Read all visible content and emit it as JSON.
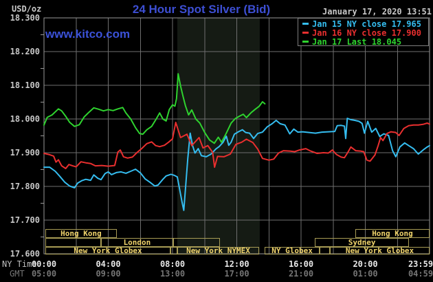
{
  "header": {
    "units_label": "USD/oz",
    "title": "24 Hour Spot Silver (Bid)",
    "timestamp": "January 17, 2020 13:51",
    "watermark": "www.kitco.com"
  },
  "legend": {
    "items": [
      {
        "label": "Jan 15 NY close 17.965",
        "color": "#35bdf0"
      },
      {
        "label": "Jan 16 NY close 17.900",
        "color": "#e92f2f"
      },
      {
        "label": "Jan 17 Last 18.045",
        "color": "#2fd32f"
      }
    ]
  },
  "axes": {
    "y_ticks": [
      "18.300",
      "18.200",
      "18.100",
      "18.000",
      "17.900",
      "17.800",
      "17.700",
      "17.600"
    ],
    "y_values": [
      18.3,
      18.2,
      18.1,
      18.0,
      17.9,
      17.8,
      17.7,
      17.6
    ],
    "tick_hours": [
      0,
      4,
      8,
      12,
      16,
      20,
      24
    ],
    "rows": [
      {
        "label": "NY Time",
        "color": "#bfbfbf",
        "tick_color": "#e8e8e8",
        "ticks": [
          "00:00",
          "04:00",
          "08:00",
          "12:00",
          "16:00",
          "20:00",
          "23:59"
        ]
      },
      {
        "label": "GMT",
        "color": "#757575",
        "tick_color": "#757575",
        "ticks": [
          "05:00",
          "09:00",
          "13:00",
          "17:00",
          "21:00",
          "01:00",
          "04:59"
        ]
      }
    ]
  },
  "sessions": {
    "rows": [
      {
        "boxes": [
          {
            "label": "Hong Kong",
            "start_h": 0.09,
            "end_h": 4.53
          },
          {
            "label": "Hong Kong",
            "start_h": 19.38,
            "end_h": 24
          }
        ]
      },
      {
        "boxes": [
          {
            "label": "",
            "start_h": 0.09,
            "end_h": 3.55
          },
          {
            "label": "London",
            "start_h": 3.55,
            "end_h": 8.04
          },
          {
            "label": "",
            "start_h": 8.04,
            "end_h": 10.95
          },
          {
            "label": "Sydney",
            "start_h": 16.86,
            "end_h": 22.72
          }
        ]
      },
      {
        "boxes": [
          {
            "label": "New York Globex",
            "start_h": 0.09,
            "end_h": 7.87
          },
          {
            "label": "",
            "start_h": 7.87,
            "end_h": 8.3
          },
          {
            "label": "New York NYMEX",
            "start_h": 8.3,
            "end_h": 13.39
          },
          {
            "label": "NY Globex",
            "start_h": 13.73,
            "end_h": 17.16
          },
          {
            "label": "",
            "start_h": 17.16,
            "end_h": 17.8
          },
          {
            "label": "New York Globex",
            "start_h": 17.8,
            "end_h": 24
          }
        ]
      }
    ]
  },
  "chart_data": {
    "type": "line",
    "title": "24 Hour Spot Silver (Bid)",
    "xlabel": "NY Time (hours 00:00-23:59)",
    "ylabel": "USD/oz",
    "xlim": [
      0,
      24
    ],
    "ylim": [
      17.6,
      18.3
    ],
    "grid": true,
    "legend_position": "top-right",
    "highlight_band_hours": [
      8.3,
      13.43
    ],
    "grid_color": "#6f6f6f",
    "band_color": "#151b14",
    "series": [
      {
        "name": "Jan 15 NY close 17.965",
        "color": "#35bdf0",
        "points": [
          [
            0,
            17.857
          ],
          [
            0.35,
            17.857
          ],
          [
            0.7,
            17.845
          ],
          [
            1.0,
            17.829
          ],
          [
            1.3,
            17.812
          ],
          [
            1.6,
            17.801
          ],
          [
            1.9,
            17.796
          ],
          [
            2.1,
            17.81
          ],
          [
            2.35,
            17.817
          ],
          [
            2.6,
            17.821
          ],
          [
            2.9,
            17.818
          ],
          [
            3.1,
            17.834
          ],
          [
            3.35,
            17.824
          ],
          [
            3.55,
            17.82
          ],
          [
            3.8,
            17.838
          ],
          [
            4.0,
            17.843
          ],
          [
            4.2,
            17.835
          ],
          [
            4.5,
            17.841
          ],
          [
            4.8,
            17.843
          ],
          [
            5.1,
            17.839
          ],
          [
            5.4,
            17.845
          ],
          [
            5.7,
            17.851
          ],
          [
            6.0,
            17.84
          ],
          [
            6.3,
            17.822
          ],
          [
            6.6,
            17.812
          ],
          [
            6.9,
            17.801
          ],
          [
            7.1,
            17.804
          ],
          [
            7.4,
            17.821
          ],
          [
            7.6,
            17.831
          ],
          [
            7.9,
            17.836
          ],
          [
            8.1,
            17.833
          ],
          [
            8.3,
            17.828
          ],
          [
            8.45,
            17.79
          ],
          [
            8.6,
            17.752
          ],
          [
            8.7,
            17.729
          ],
          [
            8.82,
            17.802
          ],
          [
            8.95,
            17.882
          ],
          [
            9.1,
            17.958
          ],
          [
            9.25,
            17.921
          ],
          [
            9.4,
            17.899
          ],
          [
            9.6,
            17.912
          ],
          [
            9.8,
            17.891
          ],
          [
            10.1,
            17.888
          ],
          [
            10.4,
            17.896
          ],
          [
            10.7,
            17.911
          ],
          [
            10.9,
            17.918
          ],
          [
            11.15,
            17.931
          ],
          [
            11.35,
            17.949
          ],
          [
            11.5,
            17.922
          ],
          [
            11.65,
            17.931
          ],
          [
            11.85,
            17.955
          ],
          [
            12.1,
            17.962
          ],
          [
            12.35,
            17.968
          ],
          [
            12.55,
            17.96
          ],
          [
            12.8,
            17.958
          ],
          [
            13.05,
            17.942
          ],
          [
            13.3,
            17.957
          ],
          [
            13.6,
            17.961
          ],
          [
            13.9,
            17.977
          ],
          [
            14.2,
            17.986
          ],
          [
            14.45,
            17.996
          ],
          [
            14.7,
            17.986
          ],
          [
            15.0,
            17.982
          ],
          [
            15.3,
            17.956
          ],
          [
            15.55,
            17.97
          ],
          [
            15.8,
            17.961
          ],
          [
            16.1,
            17.962
          ],
          [
            16.5,
            17.96
          ],
          [
            16.9,
            17.958
          ],
          [
            17.3,
            17.961
          ],
          [
            17.7,
            17.962
          ],
          [
            18.1,
            17.963
          ],
          [
            18.25,
            17.98
          ],
          [
            18.5,
            17.981
          ],
          [
            18.7,
            17.979
          ],
          [
            18.78,
            17.942
          ],
          [
            18.88,
            18.002
          ],
          [
            19.1,
            17.998
          ],
          [
            19.35,
            17.996
          ],
          [
            19.6,
            17.993
          ],
          [
            19.8,
            17.987
          ],
          [
            19.95,
            17.958
          ],
          [
            20.15,
            17.993
          ],
          [
            20.4,
            17.961
          ],
          [
            20.65,
            17.972
          ],
          [
            20.9,
            17.948
          ],
          [
            21.15,
            17.956
          ],
          [
            21.45,
            17.951
          ],
          [
            21.7,
            17.906
          ],
          [
            21.9,
            17.888
          ],
          [
            22.15,
            17.917
          ],
          [
            22.45,
            17.929
          ],
          [
            22.7,
            17.921
          ],
          [
            23.0,
            17.912
          ],
          [
            23.3,
            17.896
          ],
          [
            23.6,
            17.908
          ],
          [
            23.85,
            17.917
          ],
          [
            24,
            17.921
          ]
        ]
      },
      {
        "name": "Jan 16 NY close 17.900",
        "color": "#e92f2f",
        "points": [
          [
            0,
            17.898
          ],
          [
            0.35,
            17.894
          ],
          [
            0.6,
            17.89
          ],
          [
            0.75,
            17.872
          ],
          [
            0.9,
            17.879
          ],
          [
            1.1,
            17.861
          ],
          [
            1.35,
            17.853
          ],
          [
            1.55,
            17.865
          ],
          [
            1.78,
            17.861
          ],
          [
            2.0,
            17.858
          ],
          [
            2.3,
            17.873
          ],
          [
            2.6,
            17.87
          ],
          [
            2.9,
            17.868
          ],
          [
            3.2,
            17.861
          ],
          [
            3.6,
            17.862
          ],
          [
            4.0,
            17.86
          ],
          [
            4.4,
            17.862
          ],
          [
            4.6,
            17.902
          ],
          [
            4.75,
            17.908
          ],
          [
            4.95,
            17.888
          ],
          [
            5.2,
            17.884
          ],
          [
            5.5,
            17.887
          ],
          [
            5.8,
            17.901
          ],
          [
            6.1,
            17.913
          ],
          [
            6.4,
            17.927
          ],
          [
            6.7,
            17.932
          ],
          [
            6.95,
            17.921
          ],
          [
            7.2,
            17.918
          ],
          [
            7.5,
            17.922
          ],
          [
            7.75,
            17.931
          ],
          [
            8.0,
            17.941
          ],
          [
            8.2,
            17.99
          ],
          [
            8.5,
            17.945
          ],
          [
            8.9,
            17.955
          ],
          [
            9.2,
            17.921
          ],
          [
            9.65,
            17.945
          ],
          [
            9.9,
            17.914
          ],
          [
            10.2,
            17.921
          ],
          [
            10.5,
            17.901
          ],
          [
            10.62,
            17.857
          ],
          [
            10.8,
            17.889
          ],
          [
            11.2,
            17.888
          ],
          [
            11.6,
            17.896
          ],
          [
            11.95,
            17.925
          ],
          [
            12.3,
            17.931
          ],
          [
            12.6,
            17.94
          ],
          [
            13.0,
            17.93
          ],
          [
            13.3,
            17.911
          ],
          [
            13.6,
            17.883
          ],
          [
            14.0,
            17.878
          ],
          [
            14.3,
            17.881
          ],
          [
            14.6,
            17.899
          ],
          [
            14.9,
            17.906
          ],
          [
            15.3,
            17.905
          ],
          [
            15.6,
            17.903
          ],
          [
            15.9,
            17.908
          ],
          [
            16.3,
            17.912
          ],
          [
            16.6,
            17.905
          ],
          [
            17.0,
            17.898
          ],
          [
            17.4,
            17.9
          ],
          [
            17.7,
            17.899
          ],
          [
            17.95,
            17.908
          ],
          [
            18.2,
            17.895
          ],
          [
            18.5,
            17.887
          ],
          [
            18.7,
            17.885
          ],
          [
            18.9,
            17.9
          ],
          [
            19.1,
            17.917
          ],
          [
            19.4,
            17.906
          ],
          [
            19.7,
            17.905
          ],
          [
            19.9,
            17.903
          ],
          [
            20.1,
            17.878
          ],
          [
            20.3,
            17.875
          ],
          [
            20.6,
            17.893
          ],
          [
            20.8,
            17.921
          ],
          [
            20.95,
            17.945
          ],
          [
            21.1,
            17.936
          ],
          [
            21.35,
            17.957
          ],
          [
            21.6,
            17.962
          ],
          [
            21.9,
            17.96
          ],
          [
            22.1,
            17.951
          ],
          [
            22.4,
            17.972
          ],
          [
            22.7,
            17.98
          ],
          [
            23.0,
            17.982
          ],
          [
            23.3,
            17.982
          ],
          [
            23.6,
            17.984
          ],
          [
            23.85,
            17.988
          ],
          [
            24,
            17.985
          ]
        ]
      },
      {
        "name": "Jan 17 Last 18.045",
        "color": "#2fd32f",
        "points": [
          [
            0,
            17.982
          ],
          [
            0.2,
            18.005
          ],
          [
            0.5,
            18.012
          ],
          [
            0.9,
            18.03
          ],
          [
            1.1,
            18.024
          ],
          [
            1.35,
            18.008
          ],
          [
            1.6,
            17.99
          ],
          [
            1.9,
            17.978
          ],
          [
            2.2,
            17.983
          ],
          [
            2.5,
            18.006
          ],
          [
            2.8,
            18.02
          ],
          [
            3.1,
            18.033
          ],
          [
            3.4,
            18.029
          ],
          [
            3.7,
            18.024
          ],
          [
            4.0,
            18.028
          ],
          [
            4.3,
            18.025
          ],
          [
            4.6,
            18.03
          ],
          [
            4.9,
            18.034
          ],
          [
            5.1,
            18.018
          ],
          [
            5.4,
            18.0
          ],
          [
            5.7,
            17.974
          ],
          [
            5.95,
            17.957
          ],
          [
            6.15,
            17.955
          ],
          [
            6.4,
            17.968
          ],
          [
            6.7,
            17.978
          ],
          [
            7.0,
            18.001
          ],
          [
            7.2,
            18.018
          ],
          [
            7.4,
            18.0
          ],
          [
            7.6,
            17.994
          ],
          [
            7.8,
            18.028
          ],
          [
            8.0,
            18.042
          ],
          [
            8.15,
            18.038
          ],
          [
            8.25,
            18.06
          ],
          [
            8.35,
            18.134
          ],
          [
            8.5,
            18.098
          ],
          [
            8.65,
            18.068
          ],
          [
            8.8,
            18.04
          ],
          [
            9.0,
            18.012
          ],
          [
            9.2,
            18.027
          ],
          [
            9.45,
            18.0
          ],
          [
            9.7,
            17.988
          ],
          [
            10.0,
            17.96
          ],
          [
            10.3,
            17.938
          ],
          [
            10.6,
            17.928
          ],
          [
            10.85,
            17.946
          ],
          [
            11.05,
            17.931
          ],
          [
            11.35,
            17.958
          ],
          [
            11.65,
            17.988
          ],
          [
            11.9,
            18.001
          ],
          [
            12.15,
            18.008
          ],
          [
            12.4,
            18.014
          ],
          [
            12.6,
            18.004
          ],
          [
            12.9,
            18.019
          ],
          [
            13.15,
            18.029
          ],
          [
            13.4,
            18.038
          ],
          [
            13.6,
            18.051
          ],
          [
            13.75,
            18.045
          ]
        ]
      }
    ]
  }
}
